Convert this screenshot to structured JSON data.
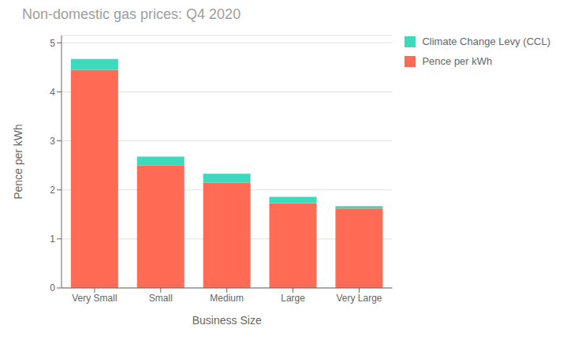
{
  "chart_data": {
    "type": "bar",
    "title": "Non-domestic gas prices: Q4 2020",
    "categories": [
      "Very Small",
      "Small",
      "Medium",
      "Large",
      "Very Large"
    ],
    "series": [
      {
        "name": "Pence per kWh",
        "color": "#FF6B55",
        "values": [
          4.45,
          2.5,
          2.15,
          1.73,
          1.62
        ]
      },
      {
        "name": "Climate Change Levy (CCL)",
        "color": "#3DD9BC",
        "values": [
          0.22,
          0.18,
          0.18,
          0.13,
          0.05
        ]
      }
    ],
    "stacked": true,
    "xlabel": "Business Size",
    "ylabel": "Pence per kWh",
    "ylim": [
      0,
      5.15
    ],
    "yticks": [
      0,
      1,
      2,
      3,
      4,
      5
    ],
    "grid": true,
    "legend": "upper right"
  }
}
